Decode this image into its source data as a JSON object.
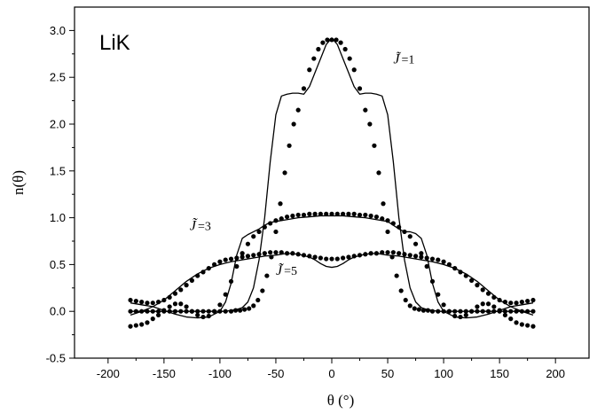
{
  "chart_data": {
    "type": "line",
    "title": "LiK",
    "xlabel": "θ (°)",
    "ylabel": "n(θ)",
    "xlim": [
      -230,
      230
    ],
    "ylim": [
      -0.5,
      3.25
    ],
    "xticks": [
      -200,
      -150,
      -100,
      -50,
      0,
      50,
      100,
      150,
      200
    ],
    "yticks": [
      -0.5,
      0.0,
      0.5,
      1.0,
      1.5,
      2.0,
      2.5,
      3.0
    ],
    "xtick_labels": [
      "-200",
      "-150",
      "-100",
      "-50",
      "0",
      "50",
      "100",
      "150",
      "200"
    ],
    "ytick_labels": [
      "-0.5",
      "0.0",
      "0.5",
      "1.0",
      "1.5",
      "2.0",
      "2.5",
      "3.0"
    ],
    "grid": false,
    "annotations": [
      {
        "glyph": "J̃",
        "text": "=1",
        "x": 55,
        "y": 2.65
      },
      {
        "glyph": "J̃",
        "text": "=3",
        "x": -127,
        "y": 0.87
      },
      {
        "glyph": "J̃",
        "text": "=5",
        "x": -50,
        "y": 0.39
      }
    ],
    "series": [
      {
        "style": "solid",
        "x": [
          -180,
          -160,
          -140,
          -120,
          -110,
          -100,
          -95,
          -90,
          -85,
          -80,
          -75,
          -70,
          -65,
          -60,
          -55,
          -50,
          -45,
          -40,
          -35,
          -30,
          -25,
          -20,
          -15,
          -10,
          -5,
          0,
          5,
          10,
          15,
          20,
          25,
          30,
          35,
          40,
          45,
          50,
          55,
          60,
          65,
          70,
          75,
          80,
          85,
          90,
          95,
          100,
          110,
          120,
          140,
          160,
          180
        ],
        "y": [
          0.0,
          0.0,
          0.0,
          0.0,
          0.0,
          0.0,
          0.0,
          0.01,
          0.02,
          0.04,
          0.1,
          0.25,
          0.55,
          1.0,
          1.6,
          2.1,
          2.3,
          2.32,
          2.33,
          2.33,
          2.32,
          2.4,
          2.55,
          2.7,
          2.85,
          2.92,
          2.85,
          2.7,
          2.55,
          2.4,
          2.32,
          2.33,
          2.33,
          2.32,
          2.3,
          2.1,
          1.6,
          1.0,
          0.55,
          0.25,
          0.1,
          0.04,
          0.02,
          0.01,
          0.0,
          0.0,
          0.0,
          0.0,
          0.0,
          0.0,
          0.0
        ]
      },
      {
        "style": "solid",
        "x": [
          -180,
          -170,
          -160,
          -150,
          -140,
          -130,
          -120,
          -110,
          -100,
          -95,
          -90,
          -85,
          -80,
          -75,
          -70,
          -65,
          -60,
          -55,
          -50,
          -40,
          -30,
          -20,
          -10,
          0,
          10,
          20,
          30,
          40,
          50,
          55,
          60,
          65,
          70,
          75,
          80,
          85,
          90,
          95,
          100,
          110,
          120,
          130,
          140,
          150,
          160,
          170,
          180
        ],
        "y": [
          0.09,
          0.07,
          0.05,
          0.01,
          -0.03,
          -0.06,
          -0.07,
          -0.06,
          0.0,
          0.1,
          0.3,
          0.6,
          0.78,
          0.82,
          0.85,
          0.88,
          0.92,
          0.95,
          0.96,
          0.98,
          1.0,
          1.01,
          1.02,
          1.02,
          1.02,
          1.01,
          1.0,
          0.98,
          0.96,
          0.92,
          0.88,
          0.85,
          0.85,
          0.83,
          0.78,
          0.6,
          0.3,
          0.1,
          0.0,
          -0.06,
          -0.07,
          -0.06,
          -0.03,
          0.01,
          0.05,
          0.07,
          0.09
        ]
      },
      {
        "style": "solid",
        "x": [
          -180,
          -170,
          -160,
          -150,
          -140,
          -130,
          -120,
          -110,
          -100,
          -90,
          -80,
          -70,
          -60,
          -50,
          -40,
          -30,
          -20,
          -15,
          -10,
          -5,
          0,
          5,
          10,
          15,
          20,
          30,
          40,
          50,
          60,
          70,
          80,
          90,
          100,
          110,
          120,
          130,
          140,
          150,
          160,
          170,
          180
        ],
        "y": [
          -0.04,
          0.0,
          0.05,
          0.12,
          0.22,
          0.32,
          0.4,
          0.46,
          0.5,
          0.53,
          0.55,
          0.57,
          0.59,
          0.6,
          0.62,
          0.61,
          0.58,
          0.55,
          0.51,
          0.48,
          0.47,
          0.48,
          0.51,
          0.55,
          0.58,
          0.61,
          0.62,
          0.6,
          0.59,
          0.57,
          0.55,
          0.53,
          0.5,
          0.46,
          0.4,
          0.32,
          0.22,
          0.12,
          0.05,
          0.0,
          -0.04
        ]
      },
      {
        "style": "dots",
        "x": [
          -4,
          0,
          4,
          -8,
          8,
          -12,
          12,
          -16,
          16,
          -20,
          20,
          -25,
          25,
          -30,
          30,
          -34,
          34,
          -38,
          38,
          -42,
          42,
          -46,
          46,
          -50,
          50,
          -54,
          54,
          -58,
          58,
          -62,
          62,
          -66,
          66,
          -70,
          70,
          -74,
          74,
          -78,
          78,
          -82,
          82,
          -86,
          86,
          -90,
          90,
          -95,
          95,
          -100,
          100,
          -105,
          105,
          -110,
          110,
          -115,
          115,
          -120,
          120,
          -125,
          125,
          -130,
          130,
          -135,
          135,
          -140,
          140,
          -145,
          145,
          -150,
          150,
          -155,
          155,
          -160,
          160,
          -165,
          165,
          -170,
          170,
          -175,
          175,
          -180,
          180
        ],
        "y": [
          2.9,
          2.9,
          2.9,
          2.87,
          2.87,
          2.8,
          2.8,
          2.7,
          2.7,
          2.58,
          2.58,
          2.38,
          2.38,
          2.15,
          2.15,
          2.0,
          2.0,
          1.77,
          1.77,
          1.48,
          1.48,
          1.15,
          1.15,
          0.85,
          0.85,
          0.58,
          0.58,
          0.38,
          0.38,
          0.22,
          0.22,
          0.12,
          0.12,
          0.06,
          0.06,
          0.03,
          0.03,
          0.02,
          0.02,
          0.01,
          0.01,
          0.01,
          0.01,
          0.0,
          0.0,
          0.0,
          0.0,
          0.0,
          0.0,
          0.0,
          0.0,
          0.0,
          0.0,
          0.0,
          0.0,
          0.0,
          0.0,
          0.0,
          0.0,
          0.0,
          0.0,
          0.0,
          0.0,
          0.0,
          0.0,
          0.0,
          0.0,
          0.0,
          0.0,
          0.0,
          0.0,
          0.0,
          0.0,
          0.0,
          0.0,
          0.0,
          0.0,
          0.0,
          0.0,
          0.0,
          0.0
        ]
      },
      {
        "style": "dots",
        "x": [
          0,
          -5,
          5,
          -10,
          10,
          -15,
          15,
          -20,
          20,
          -25,
          25,
          -30,
          30,
          -35,
          35,
          -40,
          40,
          -45,
          45,
          -50,
          50,
          -55,
          55,
          -60,
          60,
          -65,
          65,
          -70,
          70,
          -75,
          75,
          -80,
          80,
          -85,
          85,
          -90,
          90,
          -95,
          95,
          -100,
          100,
          -105,
          105,
          -110,
          110,
          -115,
          115,
          -120,
          120,
          -125,
          125,
          -130,
          130,
          -135,
          135,
          -140,
          140,
          -145,
          145,
          -150,
          150,
          -155,
          155,
          -160,
          160,
          -165,
          165,
          -170,
          170,
          -175,
          175,
          -180,
          180
        ],
        "y": [
          1.04,
          1.04,
          1.04,
          1.04,
          1.04,
          1.04,
          1.04,
          1.04,
          1.04,
          1.03,
          1.03,
          1.03,
          1.03,
          1.02,
          1.02,
          1.01,
          1.01,
          0.99,
          0.99,
          0.97,
          0.97,
          0.94,
          0.94,
          0.9,
          0.9,
          0.85,
          0.85,
          0.8,
          0.8,
          0.72,
          0.72,
          0.62,
          0.62,
          0.48,
          0.48,
          0.32,
          0.32,
          0.18,
          0.18,
          0.07,
          0.07,
          0.0,
          0.0,
          -0.05,
          -0.05,
          -0.06,
          -0.06,
          -0.04,
          -0.04,
          0.0,
          0.0,
          0.05,
          0.05,
          0.08,
          0.08,
          0.08,
          0.08,
          0.05,
          0.05,
          0.01,
          0.01,
          -0.04,
          -0.04,
          -0.08,
          -0.08,
          -0.12,
          -0.12,
          -0.14,
          -0.14,
          -0.15,
          -0.15,
          -0.16,
          -0.16
        ]
      },
      {
        "style": "dots",
        "x": [
          0,
          -5,
          5,
          -10,
          10,
          -15,
          15,
          -20,
          20,
          -25,
          25,
          -30,
          30,
          -35,
          35,
          -40,
          40,
          -45,
          45,
          -50,
          50,
          -55,
          55,
          -60,
          60,
          -65,
          65,
          -70,
          70,
          -75,
          75,
          -80,
          80,
          -85,
          85,
          -90,
          90,
          -95,
          95,
          -100,
          100,
          -105,
          105,
          -110,
          110,
          -115,
          115,
          -120,
          120,
          -125,
          125,
          -130,
          130,
          -135,
          135,
          -140,
          140,
          -145,
          145,
          -150,
          150,
          -155,
          155,
          -160,
          160,
          -165,
          165,
          -170,
          170,
          -175,
          175,
          -180,
          180
        ],
        "y": [
          0.56,
          0.56,
          0.56,
          0.57,
          0.57,
          0.58,
          0.58,
          0.59,
          0.59,
          0.6,
          0.6,
          0.61,
          0.61,
          0.62,
          0.62,
          0.62,
          0.62,
          0.63,
          0.63,
          0.63,
          0.63,
          0.63,
          0.63,
          0.62,
          0.62,
          0.61,
          0.61,
          0.6,
          0.6,
          0.59,
          0.59,
          0.58,
          0.58,
          0.57,
          0.57,
          0.56,
          0.56,
          0.55,
          0.55,
          0.53,
          0.53,
          0.5,
          0.5,
          0.46,
          0.46,
          0.42,
          0.42,
          0.38,
          0.38,
          0.33,
          0.33,
          0.28,
          0.28,
          0.23,
          0.23,
          0.19,
          0.19,
          0.15,
          0.15,
          0.12,
          0.12,
          0.1,
          0.1,
          0.09,
          0.09,
          0.09,
          0.09,
          0.1,
          0.1,
          0.11,
          0.11,
          0.12,
          0.12
        ]
      }
    ]
  }
}
